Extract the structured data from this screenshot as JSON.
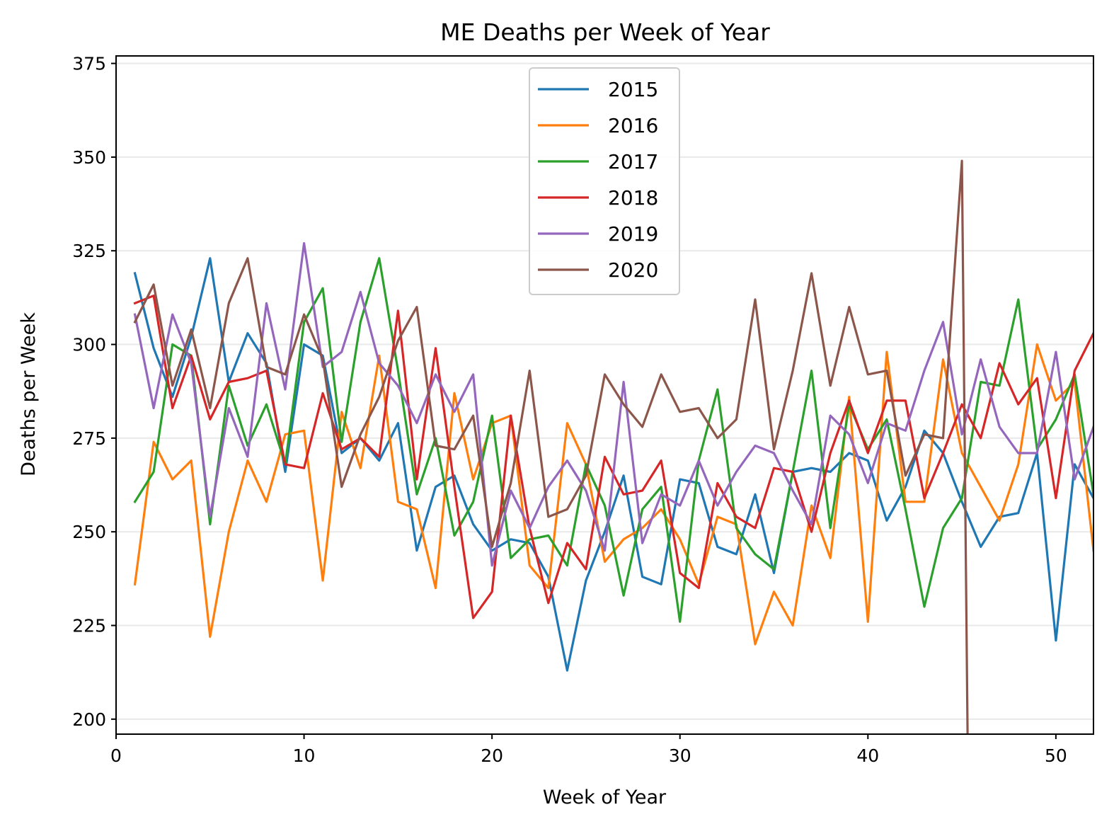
{
  "chart_data": {
    "type": "line",
    "title": "ME Deaths per Week of Year",
    "xlabel": "Week of Year",
    "ylabel": "Deaths per Week",
    "xlim": [
      0,
      52
    ],
    "ylim": [
      196,
      377
    ],
    "xticks": [
      0,
      10,
      20,
      30,
      40,
      50
    ],
    "yticks": [
      200,
      225,
      250,
      275,
      300,
      325,
      350,
      375
    ],
    "grid": "horizontal",
    "legend_position": "upper-center",
    "series": [
      {
        "name": "2015",
        "color": "#1f77b4",
        "x": [
          1,
          2,
          3,
          4,
          5,
          6,
          7,
          8,
          9,
          10,
          11,
          12,
          13,
          14,
          15,
          16,
          17,
          18,
          19,
          20,
          21,
          22,
          23,
          24,
          25,
          26,
          27,
          28,
          29,
          30,
          31,
          32,
          33,
          34,
          35,
          36,
          37,
          38,
          39,
          40,
          41,
          42,
          43,
          44,
          45,
          46,
          47,
          48,
          49,
          50,
          51,
          52
        ],
        "values": [
          319,
          299,
          286,
          302,
          323,
          290,
          303,
          295,
          266,
          300,
          297,
          271,
          275,
          269,
          279,
          245,
          262,
          265,
          252,
          245,
          248,
          247,
          238,
          213,
          237,
          250,
          265,
          238,
          236,
          264,
          263,
          246,
          244,
          260,
          239,
          266,
          267,
          266,
          271,
          269,
          253,
          262,
          277,
          271,
          258,
          246,
          254,
          255,
          271,
          221,
          268,
          259
        ]
      },
      {
        "name": "2016",
        "color": "#ff7f0e",
        "x": [
          1,
          2,
          3,
          4,
          5,
          6,
          7,
          8,
          9,
          10,
          11,
          12,
          13,
          14,
          15,
          16,
          17,
          18,
          19,
          20,
          21,
          22,
          23,
          24,
          25,
          26,
          27,
          28,
          29,
          30,
          31,
          32,
          33,
          34,
          35,
          36,
          37,
          38,
          39,
          40,
          41,
          42,
          43,
          44,
          45,
          46,
          47,
          48,
          49,
          50,
          51,
          52
        ],
        "values": [
          236,
          274,
          264,
          269,
          222,
          250,
          269,
          258,
          276,
          277,
          237,
          282,
          267,
          297,
          258,
          256,
          235,
          287,
          264,
          279,
          281,
          241,
          235,
          279,
          268,
          242,
          248,
          251,
          256,
          248,
          236,
          254,
          252,
          220,
          234,
          225,
          257,
          243,
          286,
          226,
          298,
          258,
          258,
          296,
          271,
          262,
          253,
          268,
          300,
          285,
          290,
          245
        ]
      },
      {
        "name": "2017",
        "color": "#2ca02c",
        "x": [
          1,
          2,
          3,
          4,
          5,
          6,
          7,
          8,
          9,
          10,
          11,
          12,
          13,
          14,
          15,
          16,
          17,
          18,
          19,
          20,
          21,
          22,
          23,
          24,
          25,
          26,
          27,
          28,
          29,
          30,
          31,
          32,
          33,
          34,
          35,
          36,
          37,
          38,
          39,
          40,
          41,
          42,
          43,
          44,
          45,
          46,
          47,
          48,
          49,
          50,
          51,
          52
        ],
        "values": [
          258,
          266,
          300,
          297,
          252,
          289,
          273,
          284,
          268,
          306,
          315,
          274,
          306,
          323,
          293,
          260,
          275,
          249,
          258,
          281,
          243,
          248,
          249,
          241,
          268,
          257,
          233,
          256,
          262,
          226,
          269,
          288,
          251,
          244,
          240,
          266,
          293,
          251,
          284,
          272,
          280,
          256,
          230,
          251,
          259,
          290,
          289,
          312,
          272,
          280,
          292,
          260
        ]
      },
      {
        "name": "2018",
        "color": "#d62728",
        "x": [
          1,
          2,
          3,
          4,
          5,
          6,
          7,
          8,
          9,
          10,
          11,
          12,
          13,
          14,
          15,
          16,
          17,
          18,
          19,
          20,
          21,
          22,
          23,
          24,
          25,
          26,
          27,
          28,
          29,
          30,
          31,
          32,
          33,
          34,
          35,
          36,
          37,
          38,
          39,
          40,
          41,
          42,
          43,
          44,
          45,
          46,
          47,
          48,
          49,
          50,
          51,
          52
        ],
        "values": [
          311,
          313,
          283,
          297,
          280,
          290,
          291,
          293,
          268,
          267,
          287,
          272,
          275,
          270,
          309,
          264,
          299,
          262,
          227,
          234,
          281,
          251,
          231,
          247,
          240,
          270,
          260,
          261,
          269,
          239,
          235,
          263,
          254,
          251,
          267,
          266,
          250,
          271,
          285,
          271,
          285,
          285,
          259,
          271,
          284,
          275,
          295,
          284,
          291,
          259,
          293,
          303
        ]
      },
      {
        "name": "2019",
        "color": "#9467bd",
        "x": [
          1,
          2,
          3,
          4,
          5,
          6,
          7,
          8,
          9,
          10,
          11,
          12,
          13,
          14,
          15,
          16,
          17,
          18,
          19,
          20,
          21,
          22,
          23,
          24,
          25,
          26,
          27,
          28,
          29,
          30,
          31,
          32,
          33,
          34,
          35,
          36,
          37,
          38,
          39,
          40,
          41,
          42,
          43,
          44,
          45,
          46,
          47,
          48,
          49,
          50,
          51,
          52
        ],
        "values": [
          308,
          283,
          308,
          295,
          254,
          283,
          270,
          311,
          288,
          327,
          294,
          298,
          314,
          295,
          289,
          279,
          292,
          282,
          292,
          241,
          261,
          251,
          262,
          269,
          261,
          245,
          290,
          247,
          260,
          257,
          269,
          257,
          266,
          273,
          271,
          261,
          252,
          281,
          276,
          263,
          279,
          277,
          293,
          306,
          276,
          296,
          278,
          271,
          271,
          298,
          264,
          278
        ]
      },
      {
        "name": "2020",
        "color": "#8c564b",
        "x": [
          1,
          2,
          3,
          4,
          5,
          6,
          7,
          8,
          9,
          10,
          11,
          12,
          13,
          14,
          15,
          16,
          17,
          18,
          19,
          20,
          21,
          22,
          23,
          24,
          25,
          26,
          27,
          28,
          29,
          30,
          31,
          32,
          33,
          34,
          35,
          36,
          37,
          38,
          39,
          40,
          41,
          42,
          43,
          44,
          45,
          45.3
        ],
        "values": [
          306,
          316,
          289,
          304,
          283,
          311,
          323,
          294,
          292,
          308,
          296,
          262,
          276,
          286,
          301,
          310,
          273,
          272,
          281,
          246,
          263,
          293,
          254,
          256,
          265,
          292,
          284,
          278,
          292,
          282,
          283,
          275,
          280,
          312,
          272,
          293,
          319,
          289,
          310,
          292,
          293,
          265,
          276,
          275,
          349,
          196
        ]
      }
    ]
  }
}
